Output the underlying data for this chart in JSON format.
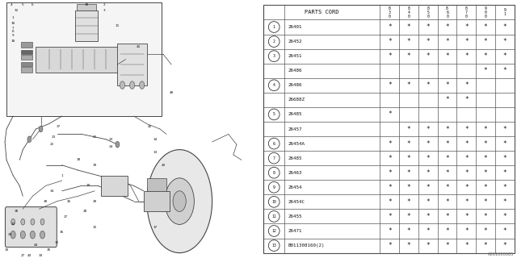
{
  "watermark": "A261000085",
  "table": {
    "header_col1": "PARTS CORD",
    "col_headers_rotated": [
      "8\n3\n0",
      "8\n4\n0",
      "8\n5\n0",
      "8\n6\n0",
      "8\n7\n0",
      "9\n0\n0",
      "9\n1"
    ],
    "rows": [
      {
        "ref": "1",
        "show_circle": true,
        "part": "26401",
        "marks": [
          1,
          1,
          1,
          1,
          1,
          1,
          1
        ]
      },
      {
        "ref": "2",
        "show_circle": true,
        "part": "26452",
        "marks": [
          1,
          1,
          1,
          1,
          1,
          1,
          1
        ]
      },
      {
        "ref": "3",
        "show_circle": true,
        "part": "26451",
        "marks": [
          1,
          1,
          1,
          1,
          1,
          1,
          1
        ]
      },
      {
        "ref": "",
        "show_circle": false,
        "part": "26486",
        "marks": [
          0,
          0,
          0,
          0,
          0,
          1,
          1
        ]
      },
      {
        "ref": "4",
        "show_circle": true,
        "part": "26486",
        "marks": [
          1,
          1,
          1,
          1,
          1,
          0,
          0
        ]
      },
      {
        "ref": "",
        "show_circle": false,
        "part": "26688Z",
        "marks": [
          0,
          0,
          0,
          1,
          1,
          0,
          0
        ]
      },
      {
        "ref": "5",
        "show_circle": true,
        "part": "26485",
        "marks": [
          1,
          0,
          0,
          0,
          0,
          0,
          0
        ]
      },
      {
        "ref": "",
        "show_circle": false,
        "part": "26457",
        "marks": [
          0,
          1,
          1,
          1,
          1,
          1,
          1
        ]
      },
      {
        "ref": "6",
        "show_circle": true,
        "part": "26454A",
        "marks": [
          1,
          1,
          1,
          1,
          1,
          1,
          1
        ]
      },
      {
        "ref": "7",
        "show_circle": true,
        "part": "26485",
        "marks": [
          1,
          1,
          1,
          1,
          1,
          1,
          1
        ]
      },
      {
        "ref": "8",
        "show_circle": true,
        "part": "26463",
        "marks": [
          1,
          1,
          1,
          1,
          1,
          1,
          1
        ]
      },
      {
        "ref": "9",
        "show_circle": true,
        "part": "26454",
        "marks": [
          1,
          1,
          1,
          1,
          1,
          1,
          1
        ]
      },
      {
        "ref": "10",
        "show_circle": true,
        "part": "26454C",
        "marks": [
          1,
          1,
          1,
          1,
          1,
          1,
          1
        ]
      },
      {
        "ref": "11",
        "show_circle": true,
        "part": "26455",
        "marks": [
          1,
          1,
          1,
          1,
          1,
          1,
          1
        ]
      },
      {
        "ref": "12",
        "show_circle": true,
        "part": "26471",
        "marks": [
          1,
          1,
          1,
          1,
          1,
          1,
          1
        ]
      },
      {
        "ref": "13",
        "show_circle": true,
        "part": "B011308160(2)",
        "marks": [
          1,
          1,
          1,
          1,
          1,
          1,
          1
        ]
      }
    ]
  },
  "bg_color": "#ffffff",
  "lc": "#444444",
  "tc": "#111111"
}
